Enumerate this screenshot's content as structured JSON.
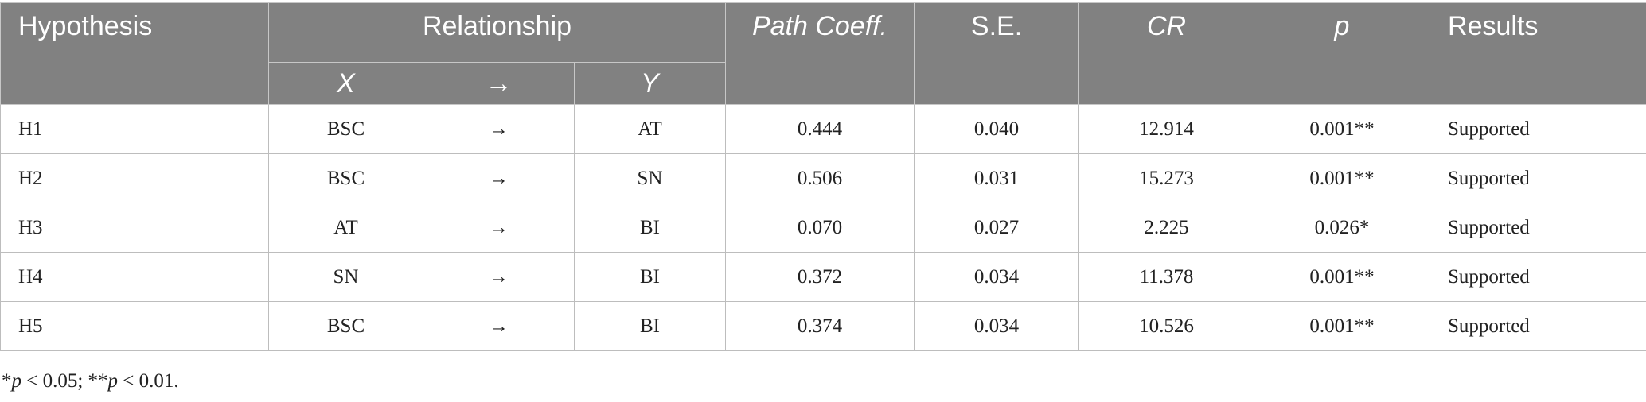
{
  "headers": {
    "hypothesis": "Hypothesis",
    "relationship": "Relationship",
    "x": "X",
    "arrow": "→",
    "y": "Y",
    "path_coeff": "Path Coeff.",
    "se": "S.E.",
    "cr": "CR",
    "p": "p",
    "results": "Results"
  },
  "rows": [
    {
      "hypothesis": "H1",
      "x": "BSC",
      "arrow": "→",
      "y": "AT",
      "path_coeff": "0.444",
      "se": "0.040",
      "cr": "12.914",
      "p": "0.001**",
      "results": "Supported"
    },
    {
      "hypothesis": "H2",
      "x": "BSC",
      "arrow": "→",
      "y": "SN",
      "path_coeff": "0.506",
      "se": "0.031",
      "cr": "15.273",
      "p": "0.001**",
      "results": "Supported"
    },
    {
      "hypothesis": "H3",
      "x": "AT",
      "arrow": "→",
      "y": "BI",
      "path_coeff": "0.070",
      "se": "0.027",
      "cr": "2.225",
      "p": "0.026*",
      "results": "Supported"
    },
    {
      "hypothesis": "H4",
      "x": "SN",
      "arrow": "→",
      "y": "BI",
      "path_coeff": "0.372",
      "se": "0.034",
      "cr": "11.378",
      "p": "0.001**",
      "results": "Supported"
    },
    {
      "hypothesis": "H5",
      "x": "BSC",
      "arrow": "→",
      "y": "BI",
      "path_coeff": "0.374",
      "se": "0.034",
      "cr": "10.526",
      "p": "0.001**",
      "results": "Supported"
    }
  ],
  "footnote": {
    "star1": "*",
    "p1": "p",
    "rest1": " < 0.05; **",
    "p2": "p",
    "rest2": " < 0.01."
  }
}
